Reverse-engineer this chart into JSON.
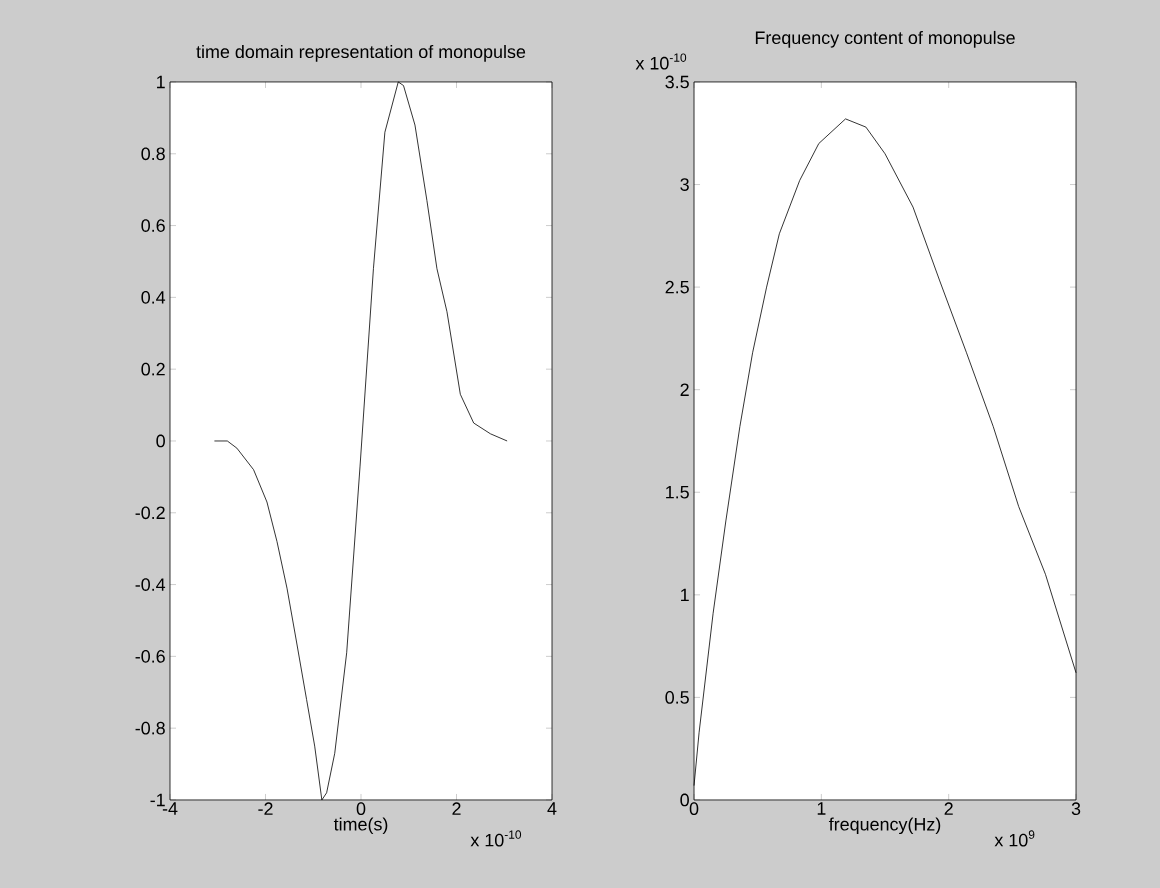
{
  "chart_data": [
    {
      "type": "line",
      "title": "time domain representation of monopulse",
      "xlabel": "time(s)",
      "annotations": [
        "x 10$^{-10}$"
      ],
      "xlim": [
        -4,
        4
      ],
      "ylim": [
        -1,
        1
      ],
      "xticks": [
        -4,
        -2,
        0,
        2,
        4
      ],
      "yticks": [
        -1,
        -0.8,
        -0.6,
        -0.4,
        -0.2,
        0,
        0.2,
        0.4,
        0.6,
        0.8,
        1
      ],
      "series": [
        {
          "color": "#000000",
          "x": [
            -3.07,
            -2.8,
            -2.6,
            -2.25,
            -1.97,
            -1.76,
            -1.55,
            -1.35,
            -1.14,
            -0.97,
            -0.82,
            -0.72,
            -0.55,
            -0.3,
            -0.02,
            0.26,
            0.5,
            0.78,
            0.89,
            1.13,
            1.38,
            1.59,
            1.8,
            2.08,
            2.36,
            2.71,
            3.06
          ],
          "values": [
            0,
            0,
            -0.02,
            -0.08,
            -0.17,
            -0.28,
            -0.41,
            -0.56,
            -0.72,
            -0.85,
            -1.0,
            -0.98,
            -0.87,
            -0.59,
            -0.07,
            0.48,
            0.86,
            1.0,
            0.99,
            0.88,
            0.67,
            0.48,
            0.36,
            0.13,
            0.05,
            0.02,
            0.0
          ]
        }
      ]
    },
    {
      "type": "line",
      "title": "Frequency content of monopulse",
      "xlabel": "frequency(Hz)",
      "annotations": [
        "x 10$^{-10}$",
        "x 10$^{9}$"
      ],
      "xlim": [
        0,
        3
      ],
      "ylim": [
        0,
        3.5
      ],
      "xticks": [
        0,
        1,
        2,
        3
      ],
      "yticks": [
        0,
        0.5,
        1,
        1.5,
        2,
        2.5,
        3,
        3.5
      ],
      "series": [
        {
          "color": "#000000",
          "x": [
            0,
            0.04,
            0.15,
            0.25,
            0.36,
            0.46,
            0.57,
            0.67,
            0.83,
            0.98,
            1.19,
            1.35,
            1.5,
            1.72,
            1.93,
            2.14,
            2.35,
            2.55,
            2.76,
            3.0
          ],
          "values": [
            0.07,
            0.33,
            0.91,
            1.36,
            1.82,
            2.18,
            2.5,
            2.76,
            3.02,
            3.2,
            3.32,
            3.28,
            3.15,
            2.89,
            2.53,
            2.18,
            1.82,
            1.43,
            1.1,
            0.62
          ]
        }
      ]
    }
  ]
}
